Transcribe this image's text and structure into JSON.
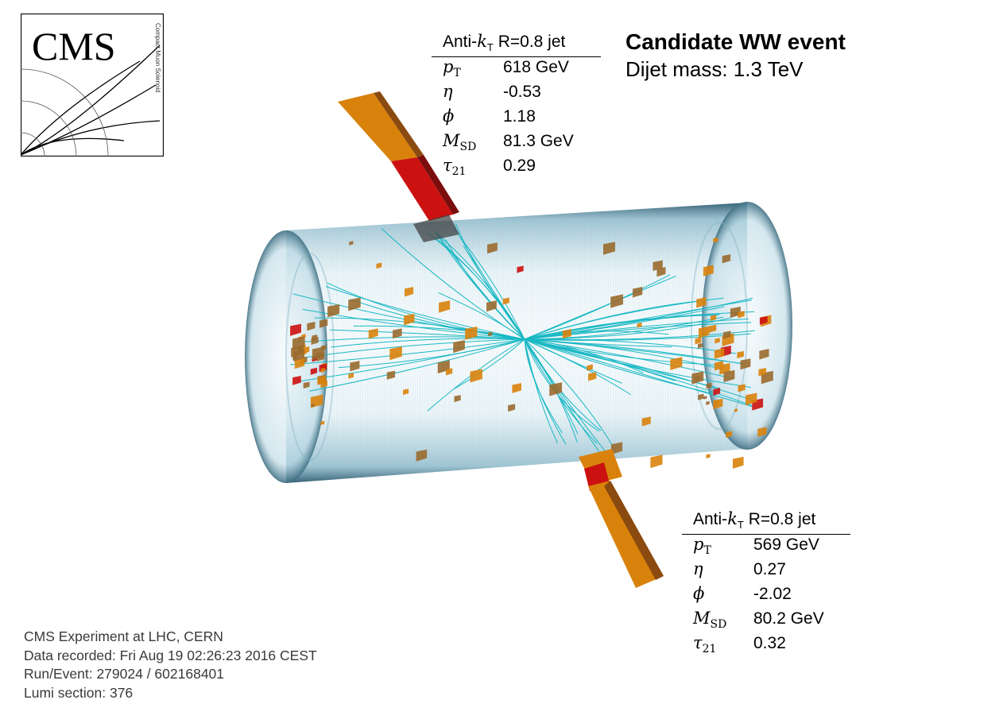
{
  "logo": {
    "text": "CMS",
    "subtext": "Compact Muon Solenoid"
  },
  "event_title": "Candidate WW event",
  "dijet_mass": "Dijet mass: 1.3 TeV",
  "jets": [
    {
      "header_prefix": "Anti-",
      "header_k": "k",
      "header_sub": "T",
      "header_suffix": " R=0.8 jet",
      "rows": [
        {
          "sym": "p",
          "sub": "T",
          "value": "618 GeV"
        },
        {
          "sym": "η",
          "sub": "",
          "value": "-0.53"
        },
        {
          "sym": "ϕ",
          "sub": "",
          "value": "1.18"
        },
        {
          "sym": "M",
          "sub": "SD",
          "value": "81.3 GeV"
        },
        {
          "sym": "τ",
          "sub": "21",
          "value": "0.29"
        }
      ]
    },
    {
      "header_prefix": "Anti-",
      "header_k": "k",
      "header_sub": "T",
      "header_suffix": " R=0.8 jet",
      "rows": [
        {
          "sym": "p",
          "sub": "T",
          "value": "569 GeV"
        },
        {
          "sym": "η",
          "sub": "",
          "value": "0.27"
        },
        {
          "sym": "ϕ",
          "sub": "",
          "value": "-2.02"
        },
        {
          "sym": "M",
          "sub": "SD",
          "value": "80.2 GeV"
        },
        {
          "sym": "τ",
          "sub": "21",
          "value": "0.32"
        }
      ]
    }
  ],
  "info": {
    "line1": "CMS Experiment at LHC, CERN",
    "line2": "Data recorded: Fri Aug 19 02:26:23 2016 CEST",
    "line3": "Run/Event: 279024 / 602168401",
    "line4": "Lumi section: 376"
  },
  "colors": {
    "detector_edge": "#3d6e82",
    "detector_fill": "#cfe6ef",
    "track": "#19b8c4",
    "tower_orange": "#d9820b",
    "tower_dark": "#8a4a10",
    "tower_red": "#cc1111",
    "brown_cell": "#9a6a2e"
  }
}
